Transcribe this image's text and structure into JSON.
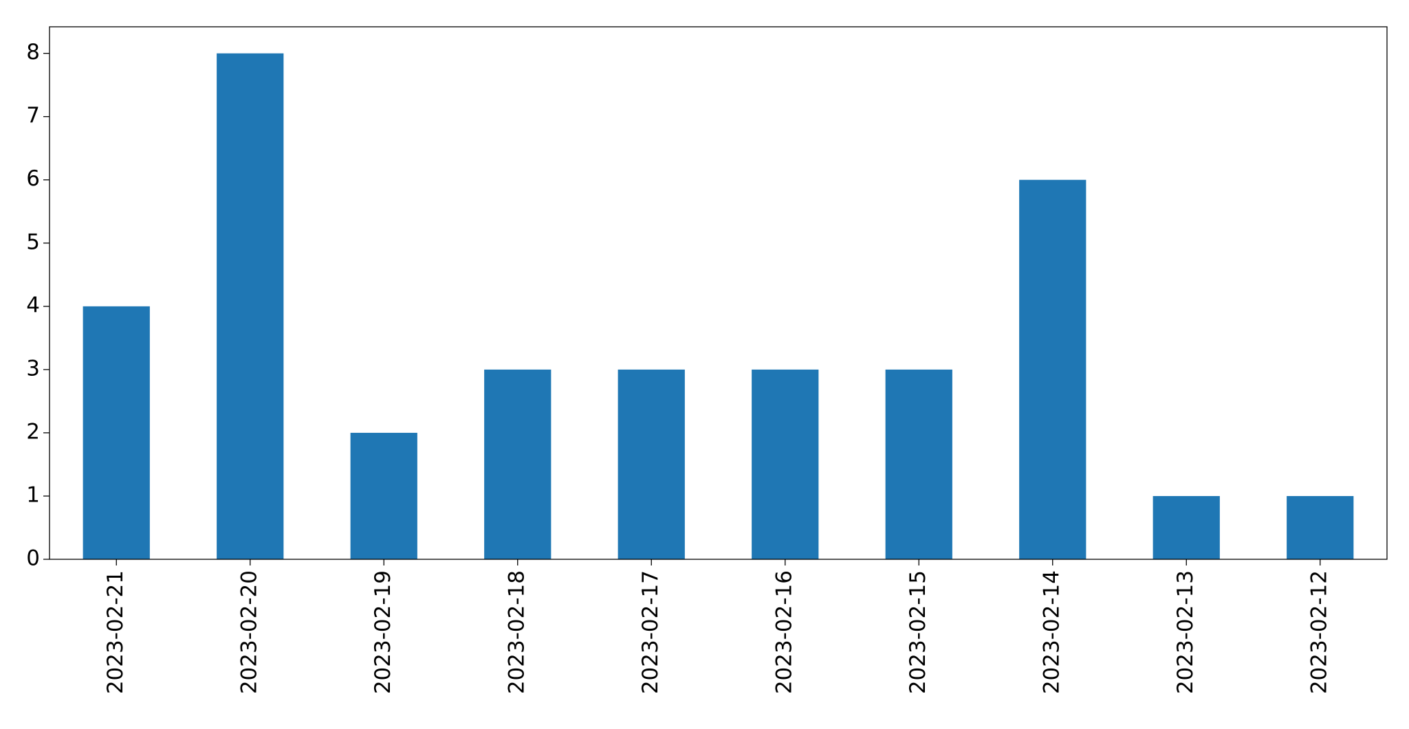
{
  "chart_data": {
    "type": "bar",
    "categories": [
      "2023-02-21",
      "2023-02-20",
      "2023-02-19",
      "2023-02-18",
      "2023-02-17",
      "2023-02-16",
      "2023-02-15",
      "2023-02-14",
      "2023-02-13",
      "2023-02-12"
    ],
    "values": [
      4,
      8,
      2,
      3,
      3,
      3,
      3,
      6,
      1,
      1
    ],
    "color": "#1f77b4",
    "ylim": [
      0,
      8.42
    ],
    "yticks": [
      0,
      1,
      2,
      3,
      4,
      5,
      6,
      7,
      8
    ],
    "grid": false
  }
}
